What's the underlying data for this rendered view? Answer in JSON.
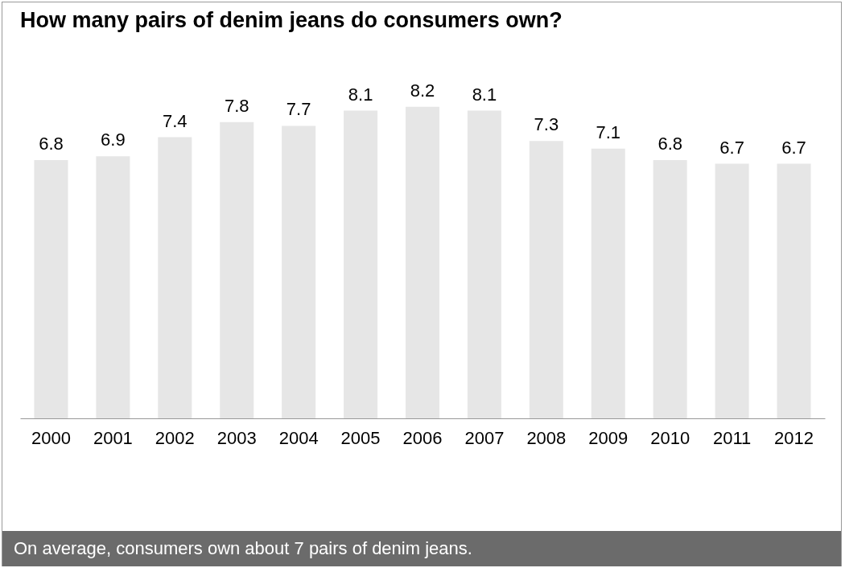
{
  "chart_data": {
    "type": "bar",
    "title": "How many pairs of denim jeans do consumers own?",
    "categories": [
      "2000",
      "2001",
      "2002",
      "2003",
      "2004",
      "2005",
      "2006",
      "2007",
      "2008",
      "2009",
      "2010",
      "2011",
      "2012"
    ],
    "values": [
      6.8,
      6.9,
      7.4,
      7.8,
      7.7,
      8.1,
      8.2,
      8.1,
      7.3,
      7.1,
      6.8,
      6.7,
      6.7
    ],
    "color": "#e6e6e6",
    "data_labels": true,
    "annotations": [
      "On average, consumers own about 7 pairs of denim jeans."
    ]
  }
}
